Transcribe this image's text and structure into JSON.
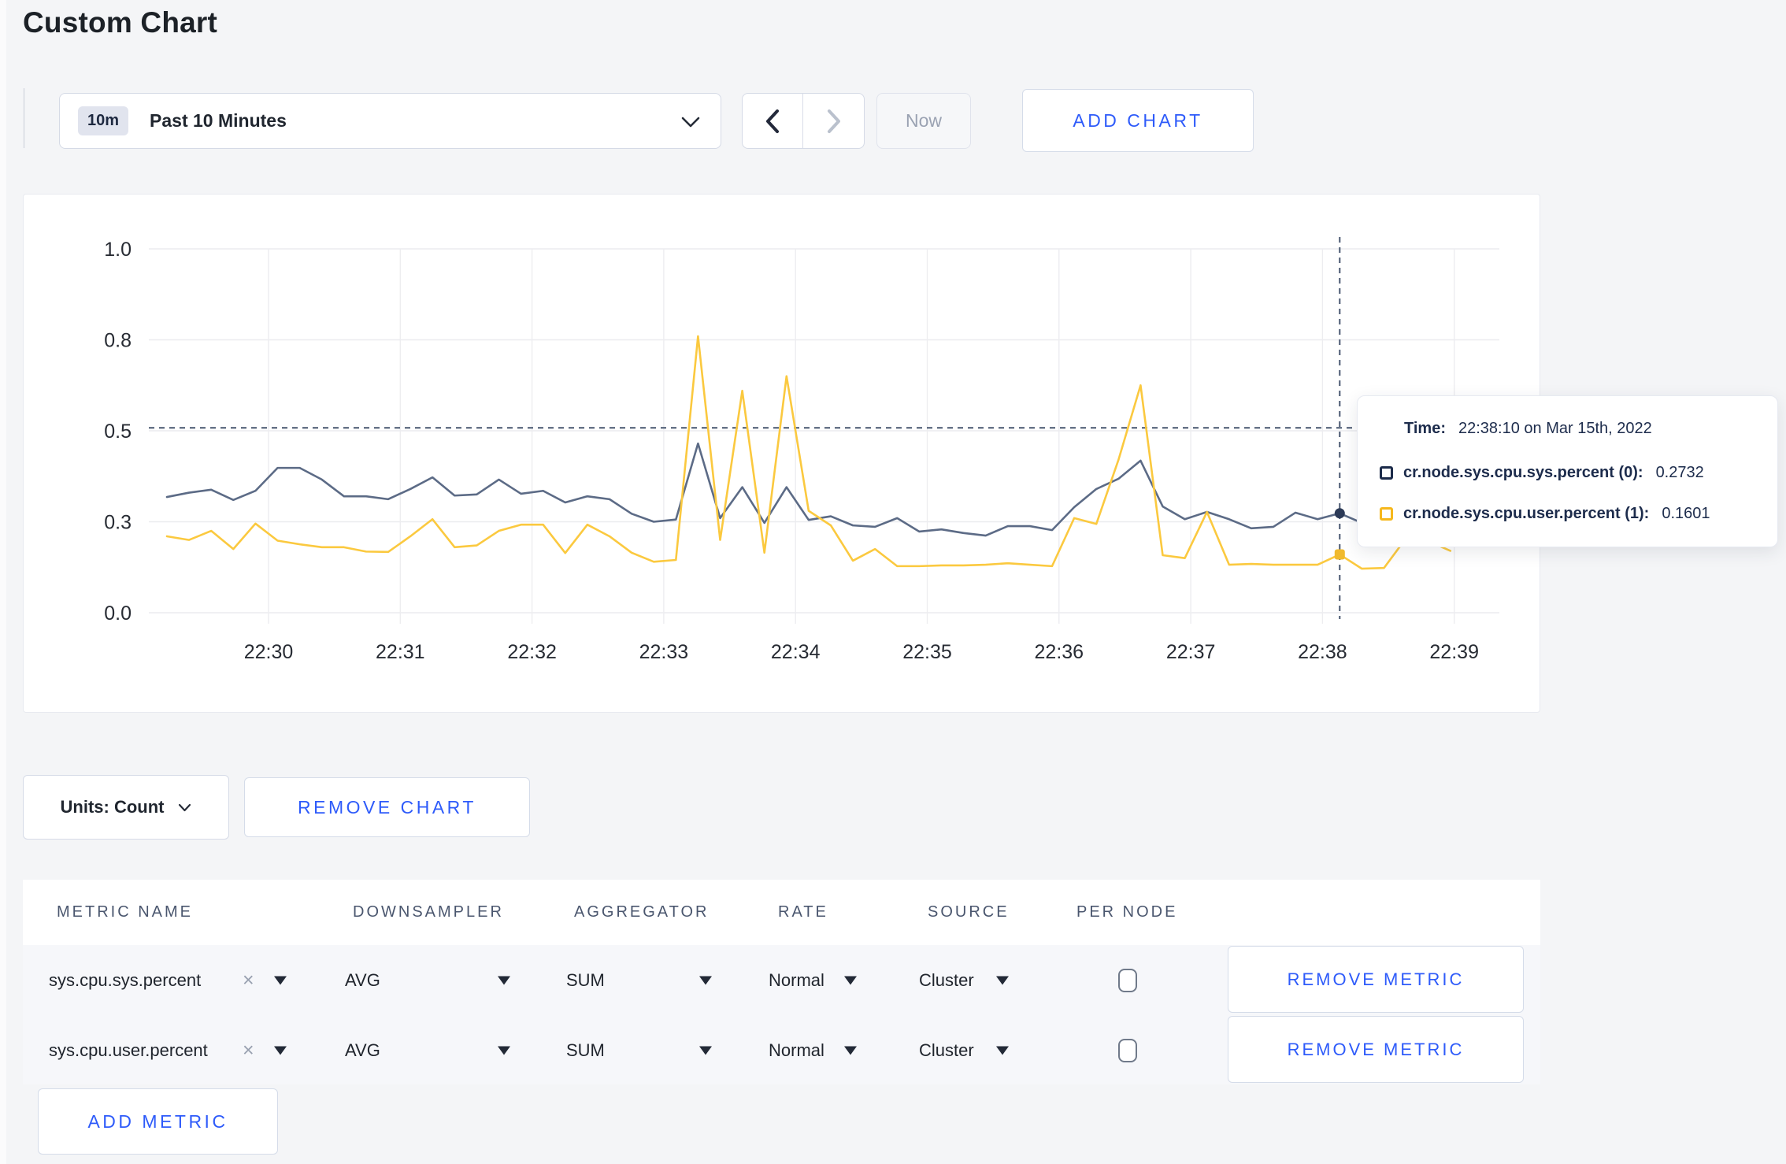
{
  "page": {
    "title": "Custom Chart"
  },
  "toolbar": {
    "time_badge": "10m",
    "time_range_label": "Past 10 Minutes",
    "now_label": "Now",
    "add_chart_label": "ADD CHART"
  },
  "chart_controls": {
    "units_label": "Units: Count",
    "remove_chart_label": "REMOVE CHART"
  },
  "tooltip": {
    "time_label": "Time:",
    "time_value": "22:38:10 on Mar 15th, 2022",
    "rows": [
      {
        "name": "cr.node.sys.cpu.sys.percent (0):",
        "value": "0.2732",
        "swatch_color": "#1c2b4a"
      },
      {
        "name": "cr.node.sys.cpu.user.percent (1):",
        "value": "0.1601",
        "swatch_color": "#f6b81d"
      }
    ]
  },
  "metrics_table": {
    "columns": [
      "METRIC NAME",
      "DOWNSAMPLER",
      "AGGREGATOR",
      "RATE",
      "SOURCE",
      "PER NODE"
    ],
    "rows": [
      {
        "metric_name": "sys.cpu.sys.percent",
        "remove_token": "×",
        "downsampler": "AVG",
        "aggregator": "SUM",
        "rate": "Normal",
        "source": "Cluster",
        "per_node_checked": false,
        "remove_label": "REMOVE METRIC"
      },
      {
        "metric_name": "sys.cpu.user.percent",
        "remove_token": "×",
        "downsampler": "AVG",
        "aggregator": "SUM",
        "rate": "Normal",
        "source": "Cluster",
        "per_node_checked": false,
        "remove_label": "REMOVE METRIC"
      }
    ],
    "add_metric_label": "ADD METRIC"
  },
  "chart_data": {
    "type": "line",
    "title": "",
    "xlabel": "",
    "ylabel": "",
    "ylim": [
      0,
      1
    ],
    "grid": true,
    "x_start": "22:29:20",
    "x_interval_seconds": 10,
    "x_tick_labels": [
      "22:30",
      "22:31",
      "22:32",
      "22:33",
      "22:34",
      "22:35",
      "22:36",
      "22:37",
      "22:38",
      "22:39"
    ],
    "y_ticks": [
      {
        "value": 0.0,
        "label": "0.0"
      },
      {
        "value": 0.25,
        "label": "0.3"
      },
      {
        "value": 0.5,
        "label": "0.5"
      },
      {
        "value": 0.75,
        "label": "0.8"
      },
      {
        "value": 1.0,
        "label": "1.0"
      }
    ],
    "series": [
      {
        "name": "cr.node.sys.cpu.sys.percent",
        "color": "#5c6b86",
        "values": [
          0.318,
          0.33,
          0.338,
          0.31,
          0.335,
          0.398,
          0.398,
          0.366,
          0.32,
          0.32,
          0.312,
          0.34,
          0.372,
          0.322,
          0.325,
          0.366,
          0.327,
          0.335,
          0.303,
          0.32,
          0.312,
          0.272,
          0.25,
          0.256,
          0.465,
          0.26,
          0.345,
          0.247,
          0.345,
          0.255,
          0.265,
          0.24,
          0.236,
          0.26,
          0.223,
          0.229,
          0.219,
          0.212,
          0.238,
          0.238,
          0.227,
          0.29,
          0.34,
          0.368,
          0.418,
          0.292,
          0.257,
          0.277,
          0.257,
          0.232,
          0.236,
          0.275,
          0.257,
          0.2732,
          0.247,
          0.27,
          0.31,
          0.3,
          0.3
        ]
      },
      {
        "name": "cr.node.sys.cpu.user.percent",
        "color": "#fbc93f",
        "values": [
          0.21,
          0.2,
          0.225,
          0.175,
          0.245,
          0.198,
          0.188,
          0.18,
          0.18,
          0.168,
          0.167,
          0.21,
          0.257,
          0.18,
          0.185,
          0.225,
          0.242,
          0.242,
          0.164,
          0.242,
          0.21,
          0.165,
          0.14,
          0.145,
          0.76,
          0.2,
          0.61,
          0.165,
          0.65,
          0.28,
          0.24,
          0.143,
          0.175,
          0.128,
          0.128,
          0.13,
          0.13,
          0.132,
          0.136,
          0.132,
          0.128,
          0.26,
          0.244,
          0.42,
          0.625,
          0.158,
          0.15,
          0.277,
          0.132,
          0.134,
          0.132,
          0.132,
          0.132,
          0.1601,
          0.121,
          0.123,
          0.205,
          0.197,
          0.17
        ]
      }
    ],
    "crosshair": {
      "time": "22:38:10",
      "point_index": 53,
      "hline_value": 0.508,
      "point_values": {
        "sys": 0.2732,
        "user": 0.1601
      }
    }
  }
}
